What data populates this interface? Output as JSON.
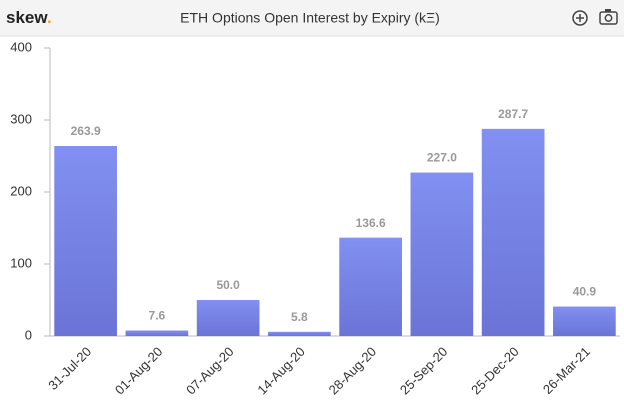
{
  "brand": "skew",
  "brand_dot": ".",
  "chart_data": {
    "type": "bar",
    "title": "ETH Options Open Interest by Expiry (kΞ)",
    "categories": [
      "31-Jul-20",
      "01-Aug-20",
      "07-Aug-20",
      "14-Aug-20",
      "28-Aug-20",
      "25-Sep-20",
      "25-Dec-20",
      "26-Mar-21"
    ],
    "values": [
      263.9,
      7.6,
      50.0,
      5.8,
      136.6,
      227.0,
      287.7,
      40.9
    ],
    "value_labels": [
      "263.9",
      "7.6",
      "50.0",
      "5.8",
      "136.6",
      "227.0",
      "287.7",
      "40.9"
    ],
    "color": "#7986e9",
    "ylim": [
      0,
      400
    ],
    "yticks": [
      0,
      100,
      200,
      300,
      400
    ],
    "grid": false
  }
}
